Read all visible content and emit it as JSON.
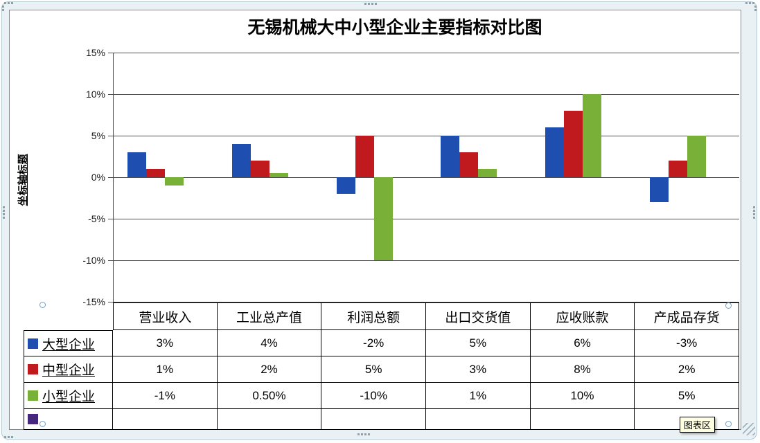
{
  "window": {
    "tooltip_label": "图表区"
  },
  "chart_data": {
    "type": "bar",
    "title": "无锡机械大中小型企业主要指标对比图",
    "y_axis_title": "坐标轴标题",
    "categories": [
      "营业收入",
      "工业总产值",
      "利润总额",
      "出口交货值",
      "应收账款",
      "产成品存货"
    ],
    "series": [
      {
        "name": "大型企业",
        "color": "#1e4fb0",
        "values": [
          3,
          4,
          -2,
          5,
          6,
          -3
        ],
        "display": [
          "3%",
          "4%",
          "-2%",
          "5%",
          "6%",
          "-3%"
        ]
      },
      {
        "name": "中型企业",
        "color": "#c11a1e",
        "values": [
          1,
          2,
          5,
          3,
          8,
          2
        ],
        "display": [
          "1%",
          "2%",
          "5%",
          "3%",
          "8%",
          "2%"
        ]
      },
      {
        "name": "小型企业",
        "color": "#79b138",
        "values": [
          -1,
          0.5,
          -10,
          1,
          10,
          5
        ],
        "display": [
          "-1%",
          "0.50%",
          "-10%",
          "1%",
          "10%",
          "5%"
        ]
      },
      {
        "name": "",
        "color": "#45287c",
        "values": [
          null,
          null,
          null,
          null,
          null,
          null
        ],
        "display": [
          "",
          "",
          "",
          "",
          "",
          ""
        ]
      }
    ],
    "y_tick_labels": [
      "15%",
      "10%",
      "5%",
      "0%",
      "-5%",
      "-10%",
      "-15%"
    ],
    "ylim": [
      -15,
      15
    ],
    "y_step": 5,
    "grid": true,
    "legend_position": "data-table-left"
  }
}
